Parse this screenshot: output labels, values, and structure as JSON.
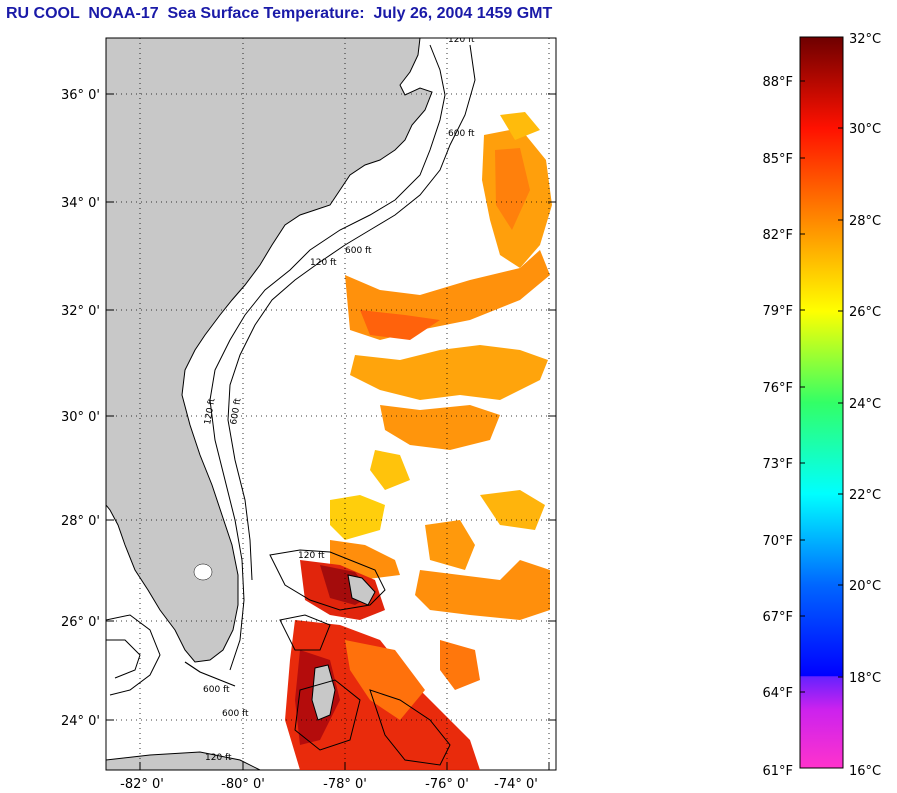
{
  "title": "RU COOL  NOAA-17  Sea Surface Temperature:  July 26, 2004 1459 GMT",
  "map": {
    "latitude_labels": [
      "36° 0'",
      "34° 0'",
      "32° 0'",
      "30° 0'",
      "28° 0'",
      "26° 0'",
      "24° 0'"
    ],
    "longitude_labels": [
      "-82° 0'",
      "-80° 0'",
      "-78° 0'",
      "-76° 0'",
      "-74° 0'"
    ],
    "contour_labels": [
      "120 ft",
      "600 ft",
      "120 ft",
      "600 ft",
      "120 ft",
      "600 ft",
      "120 ft",
      "600 ft",
      "600 ft",
      "120 ft"
    ],
    "grid": "dotted",
    "colors": {
      "land": "#c8c8c8",
      "ocean_nodata": "#ffffff",
      "coastline": "#000000"
    }
  },
  "colorbar": {
    "celsius_labels": [
      "32°C",
      "30°C",
      "28°C",
      "26°C",
      "24°C",
      "22°C",
      "20°C",
      "18°C",
      "16°C"
    ],
    "fahrenheit_labels": [
      "88°F",
      "85°F",
      "82°F",
      "79°F",
      "76°F",
      "73°F",
      "70°F",
      "67°F",
      "64°F",
      "61°F"
    ],
    "range_c": [
      16,
      32
    ],
    "colors": [
      "#ff33cc",
      "#aa22ff",
      "#3300ff",
      "#0000ff",
      "#0066ff",
      "#00bbff",
      "#00ffff",
      "#00ff88",
      "#88ff00",
      "#ffff00",
      "#ffbb00",
      "#ff8800",
      "#ff4400",
      "#ff0000",
      "#cc0000",
      "#7a0000"
    ]
  }
}
